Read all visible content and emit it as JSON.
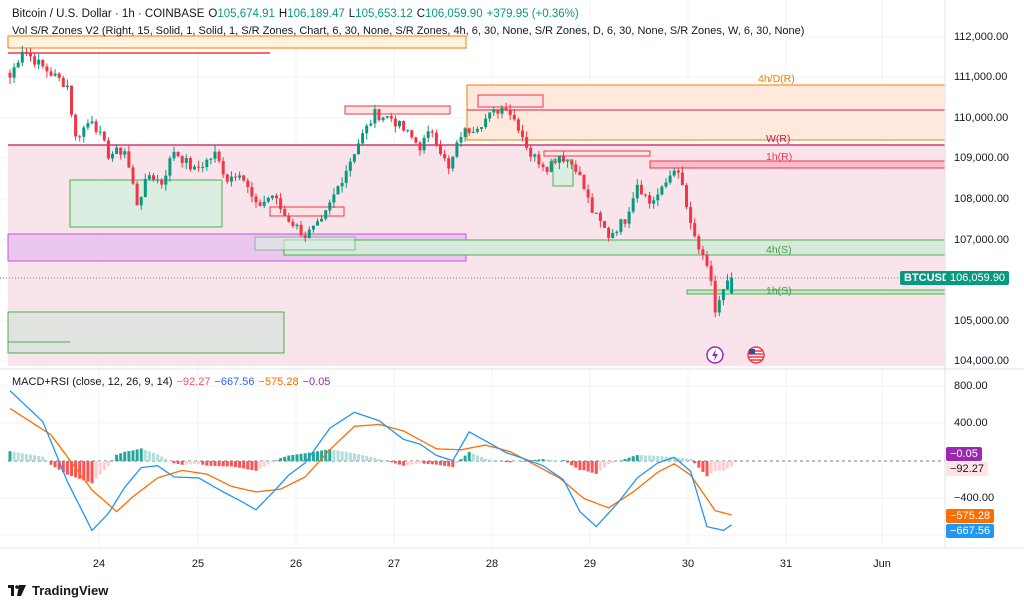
{
  "header": {
    "symbol": "Bitcoin / U.S. Dollar · 1h · COINBASE",
    "o_label": "O",
    "open": "105,674.91",
    "h_label": "H",
    "high": "106,189.47",
    "l_label": "L",
    "low": "105,653.12",
    "c_label": "C",
    "close": "106,059.90",
    "change": "+379.95 (+0.36%)",
    "indicator": "Vol S/R Zones V2 (Right, 15, Solid, 1, Solid, 1, S/R Zones, Chart, 6, 30, None, S/R Zones, 4h, 6, 30, None, S/R Zones, D, 6, 30, None, S/R Zones, W, 6, 30, None)"
  },
  "macd_header": {
    "name": "MACD+RSI (close, 12, 26, 9, 14)",
    "v1": "−92.27",
    "v2": "−667.56",
    "v3": "−575.28",
    "v4": "−0.05"
  },
  "price_axis": [
    "112,000.00",
    "111,000.00",
    "110,000.00",
    "109,000.00",
    "108,000.00",
    "107,000.00",
    "105,000.00",
    "104,000.00"
  ],
  "macd_axis": [
    "800.00",
    "400.00",
    "−400.00"
  ],
  "date_axis": [
    "24",
    "25",
    "26",
    "27",
    "28",
    "29",
    "30",
    "31",
    "Jun"
  ],
  "labels": {
    "symbol_tag": "BTCUSD",
    "last_price": "106,059.90",
    "macd_tag_a": "−0.05",
    "macd_tag_b": "−92.27",
    "macd_tag_c": "−575.28",
    "macd_tag_d": "−667.56"
  },
  "zones": {
    "z1": "4h/D(R)",
    "z2": "W(R)",
    "z3": "1h(R)",
    "z4": "4h(S)",
    "z5": "1h(S)"
  },
  "branding": "TradingView",
  "colors": {
    "up": "#089981",
    "down": "#f23645",
    "macd": "#2196f3",
    "signal": "#ff6d00",
    "rsi": "#9c27b0"
  },
  "chart_data": {
    "type": "candlestick",
    "title": "Bitcoin / U.S. Dollar · 1h · COINBASE",
    "ylim": [
      103900,
      112400
    ],
    "anchors": [
      [
        0,
        111000
      ],
      [
        3,
        111700
      ],
      [
        8,
        111250
      ],
      [
        14,
        110800
      ],
      [
        16,
        109500
      ],
      [
        20,
        110000
      ],
      [
        24,
        109100
      ],
      [
        28,
        109200
      ],
      [
        31,
        107900
      ],
      [
        34,
        108600
      ],
      [
        37,
        108400
      ],
      [
        40,
        109200
      ],
      [
        45,
        108700
      ],
      [
        50,
        109100
      ],
      [
        53,
        108500
      ],
      [
        56,
        108700
      ],
      [
        60,
        107800
      ],
      [
        64,
        108100
      ],
      [
        67,
        107600
      ],
      [
        72,
        107100
      ],
      [
        76,
        107400
      ],
      [
        80,
        108300
      ],
      [
        85,
        109400
      ],
      [
        89,
        110100
      ],
      [
        93,
        110000
      ],
      [
        97,
        109600
      ],
      [
        100,
        109300
      ],
      [
        103,
        109700
      ],
      [
        107,
        108700
      ],
      [
        110,
        109600
      ],
      [
        115,
        109900
      ],
      [
        119,
        110200
      ],
      [
        121,
        110300
      ],
      [
        124,
        109800
      ],
      [
        127,
        109100
      ],
      [
        131,
        108800
      ],
      [
        134,
        109100
      ],
      [
        138,
        108800
      ],
      [
        142,
        107700
      ],
      [
        146,
        107100
      ],
      [
        150,
        107500
      ],
      [
        153,
        108400
      ],
      [
        156,
        107900
      ],
      [
        159,
        108200
      ],
      [
        162,
        108800
      ],
      [
        164,
        108300
      ],
      [
        166,
        107300
      ],
      [
        169,
        106500
      ],
      [
        171,
        106000
      ],
      [
        172,
        105200
      ],
      [
        174,
        105700
      ],
      [
        176,
        106060
      ]
    ],
    "macd_ylim": [
      -1000,
      900
    ],
    "macd_line": [
      [
        0,
        750
      ],
      [
        8,
        420
      ],
      [
        14,
        -220
      ],
      [
        20,
        -740
      ],
      [
        24,
        -560
      ],
      [
        28,
        -280
      ],
      [
        32,
        -70
      ],
      [
        36,
        -50
      ],
      [
        40,
        -170
      ],
      [
        46,
        -180
      ],
      [
        52,
        -330
      ],
      [
        56,
        -420
      ],
      [
        60,
        -520
      ],
      [
        64,
        -340
      ],
      [
        68,
        -150
      ],
      [
        72,
        -20
      ],
      [
        78,
        350
      ],
      [
        84,
        520
      ],
      [
        90,
        430
      ],
      [
        96,
        230
      ],
      [
        100,
        180
      ],
      [
        104,
        60
      ],
      [
        108,
        5
      ],
      [
        112,
        310
      ],
      [
        117,
        190
      ],
      [
        121,
        90
      ],
      [
        125,
        30
      ],
      [
        130,
        -50
      ],
      [
        135,
        -200
      ],
      [
        139,
        -540
      ],
      [
        143,
        -700
      ],
      [
        148,
        -460
      ],
      [
        153,
        -180
      ],
      [
        158,
        -20
      ],
      [
        162,
        40
      ],
      [
        166,
        -110
      ],
      [
        170,
        -700
      ],
      [
        174,
        -740
      ],
      [
        176,
        -680
      ]
    ],
    "signal_line": [
      [
        0,
        560
      ],
      [
        10,
        280
      ],
      [
        20,
        -310
      ],
      [
        26,
        -540
      ],
      [
        30,
        -380
      ],
      [
        36,
        -180
      ],
      [
        42,
        -100
      ],
      [
        48,
        -140
      ],
      [
        54,
        -270
      ],
      [
        60,
        -330
      ],
      [
        66,
        -300
      ],
      [
        72,
        -170
      ],
      [
        78,
        120
      ],
      [
        84,
        370
      ],
      [
        90,
        390
      ],
      [
        96,
        320
      ],
      [
        104,
        130
      ],
      [
        110,
        120
      ],
      [
        116,
        170
      ],
      [
        122,
        100
      ],
      [
        128,
        -40
      ],
      [
        134,
        -180
      ],
      [
        140,
        -400
      ],
      [
        146,
        -500
      ],
      [
        152,
        -330
      ],
      [
        158,
        -120
      ],
      [
        162,
        -30
      ],
      [
        166,
        -150
      ],
      [
        172,
        -530
      ],
      [
        176,
        -575
      ]
    ],
    "current": {
      "open": 105674.91,
      "high": 106189.47,
      "low": 105653.12,
      "close": 106059.9,
      "change": 379.95,
      "change_pct": 0.36
    },
    "indicators": {
      "macd": -667.56,
      "signal": -575.28,
      "hist": -92.27,
      "rsi": -0.05
    }
  }
}
